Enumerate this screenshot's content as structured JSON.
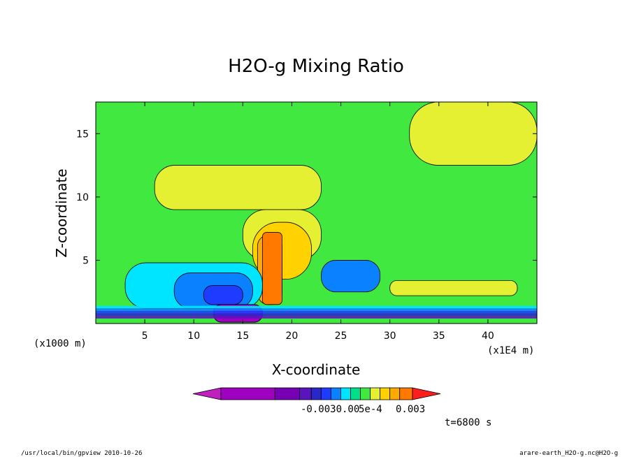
{
  "chart_data": {
    "type": "heatmap",
    "title": "H2O-g Mixing Ratio",
    "xlabel": "X-coordinate",
    "ylabel": "Z-coordinate",
    "x_unit_label": "(x1E4 m)",
    "y_unit_label": "(x1000 m)",
    "xlim": [
      0,
      45
    ],
    "ylim": [
      0,
      17.5
    ],
    "x_ticks": [
      5,
      10,
      15,
      20,
      25,
      30,
      35,
      40
    ],
    "y_ticks": [
      5,
      10,
      15
    ],
    "colorbar": {
      "colors": [
        "#c020c0",
        "#a000c0",
        "#7800b4",
        "#5a14be",
        "#2828c8",
        "#1e3cff",
        "#0a82ff",
        "#00e5ff",
        "#00e08a",
        "#40e840",
        "#e6f032",
        "#ffd200",
        "#ffaa00",
        "#ff7800",
        "#ff1e1e"
      ],
      "tick_labels": [
        "-0.0030.00",
        "5e-4",
        "0.003"
      ]
    },
    "regions": [
      {
        "level": "green",
        "color": "#40e840",
        "x": [
          0,
          45
        ],
        "z": [
          0,
          17.5
        ]
      },
      {
        "level": "yellow",
        "color": "#e6f032",
        "x": [
          32,
          45
        ],
        "z": [
          12.5,
          17.5
        ]
      },
      {
        "level": "yellow",
        "color": "#e6f032",
        "x": [
          6,
          23
        ],
        "z": [
          9,
          12.5
        ]
      },
      {
        "level": "yellow",
        "color": "#e6f032",
        "x": [
          15,
          23
        ],
        "z": [
          5,
          9
        ]
      },
      {
        "level": "yellow",
        "color": "#e6f032",
        "x": [
          30,
          43
        ],
        "z": [
          2.2,
          3.4
        ]
      },
      {
        "level": "orange-light",
        "color": "#ffd200",
        "x": [
          16,
          22
        ],
        "z": [
          3.5,
          8
        ]
      },
      {
        "level": "orange",
        "color": "#ffaa00",
        "x": [
          16.5,
          19
        ],
        "z": [
          1.5,
          7
        ]
      },
      {
        "level": "cyan",
        "color": "#00e5ff",
        "x": [
          3,
          17
        ],
        "z": [
          1.2,
          4.8
        ]
      },
      {
        "level": "blue",
        "color": "#0a82ff",
        "x": [
          8,
          16
        ],
        "z": [
          1.2,
          4
        ]
      },
      {
        "level": "blue-dark",
        "color": "#1e3cff",
        "x": [
          11,
          15
        ],
        "z": [
          1.5,
          3
        ]
      },
      {
        "level": "blue",
        "color": "#0a82ff",
        "x": [
          23,
          29
        ],
        "z": [
          2.5,
          5
        ]
      },
      {
        "level": "purple",
        "color": "#a000c0",
        "x": [
          12,
          17
        ],
        "z": [
          0.1,
          1.5
        ]
      }
    ]
  },
  "annotations": {
    "time_label": "t=6800 s",
    "footer_left": "/usr/local/bin/gpview   2010-10-26",
    "footer_right": "arare-earth_H2O-g.nc@H2O-g"
  }
}
